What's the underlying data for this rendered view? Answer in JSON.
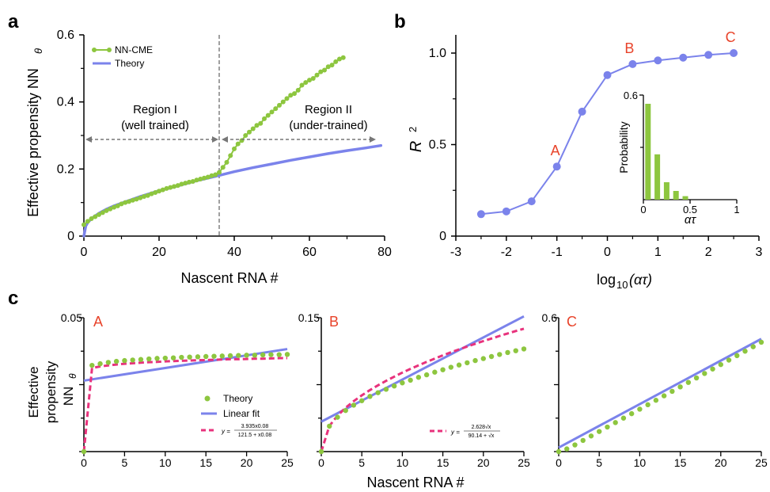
{
  "panel_letters": {
    "a": "a",
    "b": "b",
    "c": "c"
  },
  "chart_data": [
    {
      "id": "a",
      "type": "line",
      "xlabel": "Nascent RNA #",
      "ylabel": "Effective propensity NN",
      "ylabel_sub": "θ",
      "xlim": [
        0,
        80
      ],
      "ylim": [
        0,
        0.6
      ],
      "xticks": [
        0,
        20,
        40,
        60,
        80
      ],
      "xtick_labels": [
        "0",
        "20",
        "40",
        "60",
        "80"
      ],
      "yticks": [
        0,
        0.2,
        0.4,
        0.6
      ],
      "ytick_labels": [
        "0",
        "0.2",
        "0.4",
        "0.6"
      ],
      "legend": [
        "NN-CME",
        "Theory"
      ],
      "legend_position": "top-left",
      "divider_x": 36,
      "annotations": {
        "region1_line1": "Region I",
        "region1_line2": "(well trained)",
        "region2_line1": "Region II",
        "region2_line2": "(under-trained)"
      },
      "series": [
        {
          "name": "NN-CME",
          "color": "#8dc63f",
          "marker": "circle",
          "points": [
            [
              0,
              0.034
            ],
            [
              1,
              0.044
            ],
            [
              2,
              0.052
            ],
            [
              3,
              0.058
            ],
            [
              4,
              0.064
            ],
            [
              5,
              0.07
            ],
            [
              6,
              0.076
            ],
            [
              7,
              0.081
            ],
            [
              8,
              0.086
            ],
            [
              9,
              0.09
            ],
            [
              10,
              0.096
            ],
            [
              11,
              0.1
            ],
            [
              12,
              0.103
            ],
            [
              13,
              0.107
            ],
            [
              14,
              0.11
            ],
            [
              15,
              0.114
            ],
            [
              16,
              0.118
            ],
            [
              17,
              0.121
            ],
            [
              18,
              0.126
            ],
            [
              19,
              0.13
            ],
            [
              20,
              0.134
            ],
            [
              21,
              0.138
            ],
            [
              22,
              0.142
            ],
            [
              23,
              0.145
            ],
            [
              24,
              0.148
            ],
            [
              25,
              0.151
            ],
            [
              26,
              0.155
            ],
            [
              27,
              0.158
            ],
            [
              28,
              0.161
            ],
            [
              29,
              0.163
            ],
            [
              30,
              0.167
            ],
            [
              31,
              0.17
            ],
            [
              32,
              0.173
            ],
            [
              33,
              0.176
            ],
            [
              34,
              0.18
            ],
            [
              35,
              0.183
            ],
            [
              36,
              0.19
            ],
            [
              37,
              0.205
            ],
            [
              38,
              0.22
            ],
            [
              39,
              0.24
            ],
            [
              40,
              0.26
            ],
            [
              41,
              0.275
            ],
            [
              42,
              0.285
            ],
            [
              43,
              0.3
            ],
            [
              44,
              0.31
            ],
            [
              45,
              0.32
            ],
            [
              46,
              0.33
            ],
            [
              47,
              0.336
            ],
            [
              48,
              0.35
            ],
            [
              49,
              0.36
            ],
            [
              50,
              0.37
            ],
            [
              51,
              0.38
            ],
            [
              52,
              0.39
            ],
            [
              53,
              0.4
            ],
            [
              54,
              0.41
            ],
            [
              55,
              0.42
            ],
            [
              56,
              0.425
            ],
            [
              57,
              0.435
            ],
            [
              58,
              0.45
            ],
            [
              59,
              0.458
            ],
            [
              60,
              0.465
            ],
            [
              61,
              0.47
            ],
            [
              62,
              0.48
            ],
            [
              63,
              0.49
            ],
            [
              64,
              0.495
            ],
            [
              65,
              0.505
            ],
            [
              66,
              0.51
            ],
            [
              67,
              0.52
            ],
            [
              68,
              0.528
            ],
            [
              69,
              0.532
            ]
          ]
        },
        {
          "name": "Theory",
          "color": "#7b83eb",
          "marker": "none",
          "points": [
            [
              0,
              0.0
            ],
            [
              0.5,
              0.03
            ],
            [
              1,
              0.04
            ],
            [
              2,
              0.052
            ],
            [
              4,
              0.068
            ],
            [
              6,
              0.08
            ],
            [
              8,
              0.09
            ],
            [
              10,
              0.098
            ],
            [
              15,
              0.118
            ],
            [
              20,
              0.135
            ],
            [
              25,
              0.15
            ],
            [
              30,
              0.165
            ],
            [
              35,
              0.178
            ],
            [
              40,
              0.192
            ],
            [
              45,
              0.204
            ],
            [
              50,
              0.215
            ],
            [
              55,
              0.226
            ],
            [
              60,
              0.236
            ],
            [
              65,
              0.246
            ],
            [
              70,
              0.255
            ],
            [
              75,
              0.263
            ],
            [
              79,
              0.27
            ]
          ]
        }
      ]
    },
    {
      "id": "b",
      "type": "line",
      "xlabel": "log10(ατ)",
      "xlabel_main": "log",
      "xlabel_sub": "10",
      "xlabel_arg": "(ατ)",
      "ylabel": "R2",
      "ylabel_main": "R",
      "ylabel_sup": "2",
      "xlim": [
        -3,
        3
      ],
      "ylim": [
        0,
        1.1
      ],
      "xticks": [
        -3,
        -2,
        -1,
        0,
        1,
        2,
        3
      ],
      "xtick_labels": [
        "-3",
        "-2",
        "-1",
        "0",
        "1",
        "2",
        "3"
      ],
      "yticks": [
        0,
        0.5,
        1.0
      ],
      "ytick_labels": [
        "0",
        "0.5",
        "1.0"
      ],
      "series": [
        {
          "color": "#7b83eb",
          "x": [
            -2.5,
            -2.0,
            -1.5,
            -1.0,
            -0.5,
            0.0,
            0.5,
            1.0,
            1.5,
            2.0,
            2.5
          ],
          "y": [
            0.12,
            0.135,
            0.19,
            0.38,
            0.68,
            0.88,
            0.94,
            0.96,
            0.975,
            0.99,
            1.0
          ]
        }
      ],
      "point_labels": [
        {
          "text": "A",
          "x": -1.0,
          "y": 0.38,
          "color": "#e8432a"
        },
        {
          "text": "B",
          "x": 0.5,
          "y": 0.94,
          "color": "#e8432a"
        },
        {
          "text": "C",
          "x": 2.5,
          "y": 1.0,
          "color": "#e8432a"
        }
      ],
      "inset": {
        "type": "bar",
        "xlabel": "ατ",
        "ylabel": "Probability",
        "xlim": [
          0,
          1
        ],
        "ylim": [
          0,
          0.6
        ],
        "xtick_labels": [
          "0",
          "0.5",
          "1"
        ],
        "ytick_labels": [
          "0.6"
        ],
        "color": "#8dc63f",
        "x": [
          0.1,
          0.2,
          0.3,
          0.4,
          0.5
        ],
        "values": [
          0.55,
          0.26,
          0.1,
          0.05,
          0.02
        ]
      }
    },
    {
      "id": "c-A",
      "type": "line",
      "panel_label": "A",
      "panel_label_color": "#e8432a",
      "xlim": [
        0,
        25
      ],
      "ylim": [
        0,
        0.05
      ],
      "xticks": [
        0,
        5,
        10,
        15,
        20,
        25
      ],
      "xtick_labels": [
        "0",
        "5",
        "10",
        "15",
        "20",
        "25"
      ],
      "ytick_top_label": "0.05",
      "legend": [
        "Theory",
        "Linear fit"
      ],
      "fit_formula_prefix": "y =",
      "fit_formula_num": "3.935x0.08",
      "fit_formula_den": "121.5 + x0.08",
      "series": [
        {
          "name": "Theory",
          "color": "#8dc63f",
          "style": "dots",
          "y": [
            0.0,
            0.0322,
            0.0328,
            0.0333,
            0.0337,
            0.034,
            0.0342,
            0.0344,
            0.0346,
            0.0348,
            0.0349,
            0.035,
            0.0352,
            0.0353,
            0.0354,
            0.0355,
            0.0356,
            0.0357,
            0.0358,
            0.0359,
            0.036,
            0.036,
            0.0361,
            0.0362,
            0.0362,
            0.0363
          ]
        },
        {
          "name": "Linear fit",
          "color": "#7b83eb",
          "style": "solid",
          "line": [
            [
              0,
              0.0265
            ],
            [
              25,
              0.0383
            ]
          ]
        },
        {
          "name": "fit",
          "color": "#e8327c",
          "style": "dashed",
          "y": [
            0.0,
            0.0312,
            0.0318,
            0.0322,
            0.0325,
            0.0328,
            0.033,
            0.0332,
            0.0334,
            0.0335,
            0.0337,
            0.0338,
            0.0339,
            0.034,
            0.0341,
            0.0342,
            0.0343,
            0.0344,
            0.0345,
            0.0345,
            0.0346,
            0.0347,
            0.0347,
            0.0348,
            0.0349,
            0.0349
          ]
        }
      ]
    },
    {
      "id": "c-B",
      "type": "line",
      "panel_label": "B",
      "panel_label_color": "#e8432a",
      "xlim": [
        0,
        25
      ],
      "ylim": [
        0,
        0.15
      ],
      "xticks": [
        0,
        5,
        10,
        15,
        20,
        25
      ],
      "xtick_labels": [
        "0",
        "5",
        "10",
        "15",
        "20",
        "25"
      ],
      "ytick_top_label": "0.15",
      "fit_formula_prefix": "y =",
      "fit_formula_num": "2.628√x",
      "fit_formula_den": "90.14 + √x",
      "series": [
        {
          "name": "Theory",
          "color": "#8dc63f",
          "style": "dots",
          "y": [
            0.0,
            0.0285,
            0.0385,
            0.046,
            0.052,
            0.057,
            0.0618,
            0.066,
            0.0698,
            0.0735,
            0.077,
            0.08,
            0.0832,
            0.086,
            0.089,
            0.0917,
            0.0945,
            0.097,
            0.0995,
            0.102,
            0.1042,
            0.1065,
            0.1088,
            0.111,
            0.113,
            0.115
          ]
        },
        {
          "name": "Linear fit",
          "color": "#7b83eb",
          "style": "solid",
          "line": [
            [
              0,
              0.0335
            ],
            [
              25,
              0.1515
            ]
          ]
        },
        {
          "name": "fit",
          "color": "#e8327c",
          "style": "dashed",
          "y": [
            0.0,
            0.0287,
            0.0403,
            0.0491,
            0.0565,
            0.063,
            0.0689,
            0.0743,
            0.0793,
            0.084,
            0.0885,
            0.0927,
            0.0967,
            0.1005,
            0.1042,
            0.1078,
            0.1112,
            0.1145,
            0.1177,
            0.1208,
            0.1238,
            0.1267,
            0.1296,
            0.1323,
            0.1351,
            0.1377
          ]
        }
      ]
    },
    {
      "id": "c-C",
      "type": "line",
      "panel_label": "C",
      "panel_label_color": "#e8432a",
      "xlim": [
        0,
        25
      ],
      "ylim": [
        0,
        0.6
      ],
      "xticks": [
        0,
        5,
        10,
        15,
        20,
        25
      ],
      "xtick_labels": [
        "0",
        "5",
        "10",
        "15",
        "20",
        "25"
      ],
      "ytick_top_label": "0.6",
      "series": [
        {
          "name": "Theory",
          "color": "#8dc63f",
          "style": "dots",
          "y": [
            0.0,
            0.012,
            0.03,
            0.05,
            0.07,
            0.09,
            0.11,
            0.13,
            0.15,
            0.17,
            0.19,
            0.21,
            0.23,
            0.25,
            0.27,
            0.29,
            0.31,
            0.33,
            0.35,
            0.37,
            0.39,
            0.41,
            0.43,
            0.45,
            0.47,
            0.49
          ]
        },
        {
          "name": "Linear fit",
          "color": "#7b83eb",
          "style": "solid",
          "line": [
            [
              0,
              0.018
            ],
            [
              25,
              0.505
            ]
          ]
        }
      ]
    }
  ],
  "panel_c_labels": {
    "ylabel_line1": "Effective",
    "ylabel_line2": "propensity",
    "ylabel_line3": "NN",
    "ylabel_sub": "θ",
    "xlabel": "Nascent RNA #"
  }
}
